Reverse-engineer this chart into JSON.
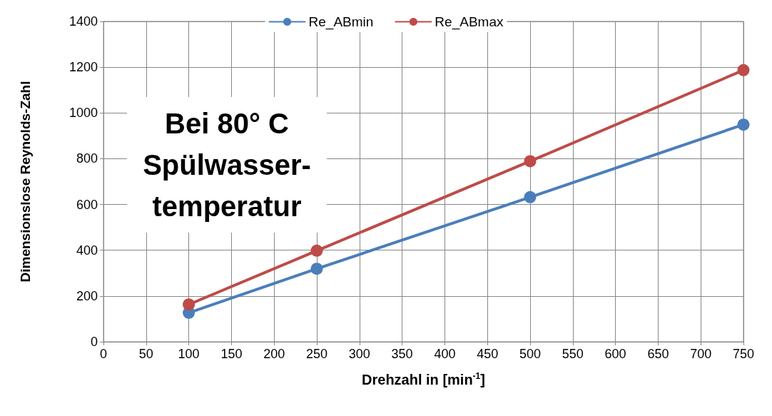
{
  "chart_data": {
    "type": "line",
    "xlabel": "Drehzahl in [min$^{-1}$]",
    "ylabel": "Dimensionslose Reynolds-Zahl",
    "annotations": [
      "Bei 80° C\nSpülwasser-\ntemperatur"
    ],
    "series": [
      {
        "name": "Re_ABmin",
        "color": "#4a7ebb",
        "x": [
          100,
          250,
          500,
          750
        ],
        "values": [
          127,
          319,
          632,
          949
        ]
      },
      {
        "name": "Re_ABmax",
        "color": "#be4b48",
        "x": [
          100,
          250,
          500,
          750
        ],
        "values": [
          163,
          398,
          789,
          1187
        ]
      }
    ],
    "xlim": [
      0,
      750
    ],
    "xticks": [
      0,
      50,
      100,
      150,
      200,
      250,
      300,
      350,
      400,
      450,
      500,
      550,
      600,
      650,
      700,
      750
    ],
    "ylim": [
      0,
      1400
    ],
    "yticks": [
      0,
      200,
      400,
      600,
      800,
      1000,
      1200,
      1400
    ],
    "grid": true,
    "legend": "top",
    "marker": "circle",
    "line_style": "solid"
  }
}
